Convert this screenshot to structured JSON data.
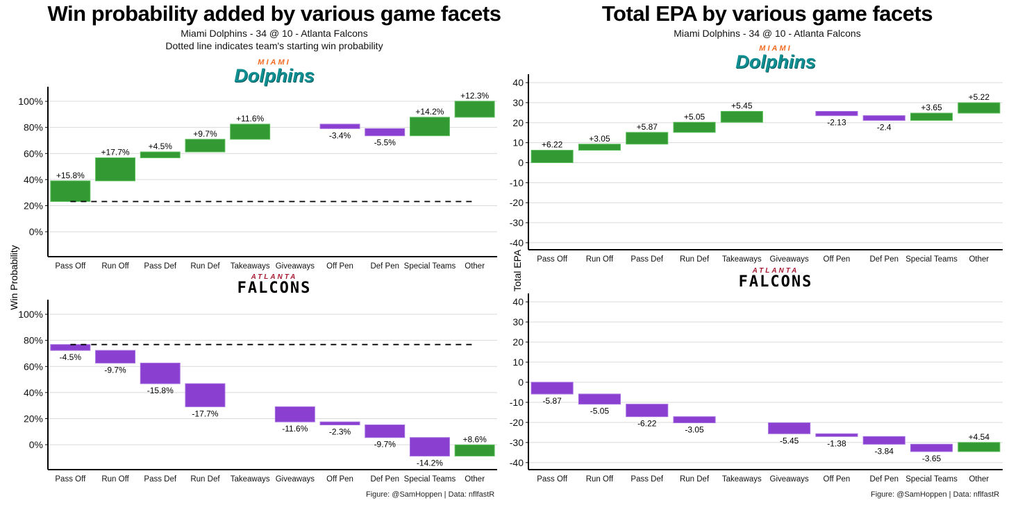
{
  "left": {
    "title": "Win probability added by various game facets",
    "subtitle1": "Miami Dolphins - 34 @ 10 - Atlanta Falcons",
    "subtitle2": "Dotted line indicates team's starting win probability",
    "ylabel": "Win Probability",
    "footer": "Figure: @SamHoppen | Data: nflfastR"
  },
  "right": {
    "title": "Total EPA by various game facets",
    "subtitle1": "Miami Dolphins - 34 @ 10 - Atlanta Falcons",
    "ylabel": "Total EPA",
    "footer": "Figure: @SamHoppen | Data: nflfastR"
  },
  "logos": {
    "dolphins_top": "MIAMI",
    "dolphins_main": "Dolphins",
    "falcons_top": "ATLANTA",
    "falcons_main": "FALCONS"
  },
  "colors": {
    "positive": "#339933",
    "negative": "#8a3fd1",
    "grid": "#d9d9d9"
  },
  "chart_data": [
    {
      "type": "bar",
      "subtype": "waterfall",
      "team": "Miami Dolphins",
      "metric": "Win Probability",
      "categories": [
        "Pass Off",
        "Run Off",
        "Pass Def",
        "Run Def",
        "Takeaways",
        "Giveaways",
        "Off Pen",
        "Def Pen",
        "Special Teams",
        "Other"
      ],
      "start": 23.2,
      "values": [
        15.8,
        17.7,
        4.5,
        9.7,
        11.6,
        0,
        -3.4,
        -5.5,
        14.2,
        12.3
      ],
      "value_labels": [
        "+15.8%",
        "+17.7%",
        "+4.5%",
        "+9.7%",
        "+11.6%",
        "",
        "-3.4%",
        "-5.5%",
        "+14.2%",
        "+12.3%"
      ],
      "ylim": [
        -19.1,
        111.2
      ],
      "yticks": [
        0,
        20,
        40,
        60,
        80,
        100
      ],
      "ytick_labels": [
        "0%",
        "20%",
        "40%",
        "60%",
        "80%",
        "100%"
      ],
      "dashed_start_line": true
    },
    {
      "type": "bar",
      "subtype": "waterfall",
      "team": "Atlanta Falcons",
      "metric": "Win Probability",
      "categories": [
        "Pass Off",
        "Run Off",
        "Pass Def",
        "Run Def",
        "Takeaways",
        "Giveaways",
        "Off Pen",
        "Def Pen",
        "Special Teams",
        "Other"
      ],
      "start": 76.8,
      "values": [
        -4.5,
        -9.7,
        -15.8,
        -17.7,
        0,
        -11.6,
        -2.3,
        -9.7,
        -14.2,
        8.6
      ],
      "value_labels": [
        "-4.5%",
        "-9.7%",
        "-15.8%",
        "-17.7%",
        "",
        "-11.6%",
        "-2.3%",
        "-9.7%",
        "-14.2%",
        "+8.6%"
      ],
      "ylim": [
        -19.1,
        111.2
      ],
      "yticks": [
        0,
        20,
        40,
        60,
        80,
        100
      ],
      "ytick_labels": [
        "0%",
        "20%",
        "40%",
        "60%",
        "80%",
        "100%"
      ],
      "dashed_start_line": true
    },
    {
      "type": "bar",
      "subtype": "waterfall",
      "team": "Miami Dolphins",
      "metric": "Total EPA",
      "categories": [
        "Pass Off",
        "Run Off",
        "Pass Def",
        "Run Def",
        "Takeaways",
        "Giveaways",
        "Off Pen",
        "Def Pen",
        "Special Teams",
        "Other"
      ],
      "start": 0,
      "values": [
        6.22,
        3.05,
        5.87,
        5.05,
        5.45,
        0,
        -2.13,
        -2.4,
        3.65,
        5.22
      ],
      "value_labels": [
        "+6.22",
        "+3.05",
        "+5.87",
        "+5.05",
        "+5.45",
        "",
        "-2.13",
        "-2.4",
        "+3.65",
        "+5.22"
      ],
      "ylim": [
        -43.5,
        44.2
      ],
      "yticks": [
        -40,
        -30,
        -20,
        -10,
        0,
        10,
        20,
        30,
        40
      ],
      "ytick_labels": [
        "-40",
        "-30",
        "-20",
        "-10",
        "0",
        "10",
        "20",
        "30",
        "40"
      ],
      "dashed_start_line": false
    },
    {
      "type": "bar",
      "subtype": "waterfall",
      "team": "Atlanta Falcons",
      "metric": "Total EPA",
      "categories": [
        "Pass Off",
        "Run Off",
        "Pass Def",
        "Run Def",
        "Takeaways",
        "Giveaways",
        "Off Pen",
        "Def Pen",
        "Special Teams",
        "Other"
      ],
      "start": 0,
      "values": [
        -5.87,
        -5.05,
        -6.22,
        -3.05,
        0,
        -5.45,
        -1.38,
        -3.84,
        -3.65,
        4.54
      ],
      "value_labels": [
        "-5.87",
        "-5.05",
        "-6.22",
        "-3.05",
        "",
        "-5.45",
        "-1.38",
        "-3.84",
        "-3.65",
        "+4.54"
      ],
      "ylim": [
        -43.5,
        44.2
      ],
      "yticks": [
        -40,
        -30,
        -20,
        -10,
        0,
        10,
        20,
        30,
        40
      ],
      "ytick_labels": [
        "-40",
        "-30",
        "-20",
        "-10",
        "0",
        "10",
        "20",
        "30",
        "40"
      ],
      "dashed_start_line": false
    }
  ]
}
